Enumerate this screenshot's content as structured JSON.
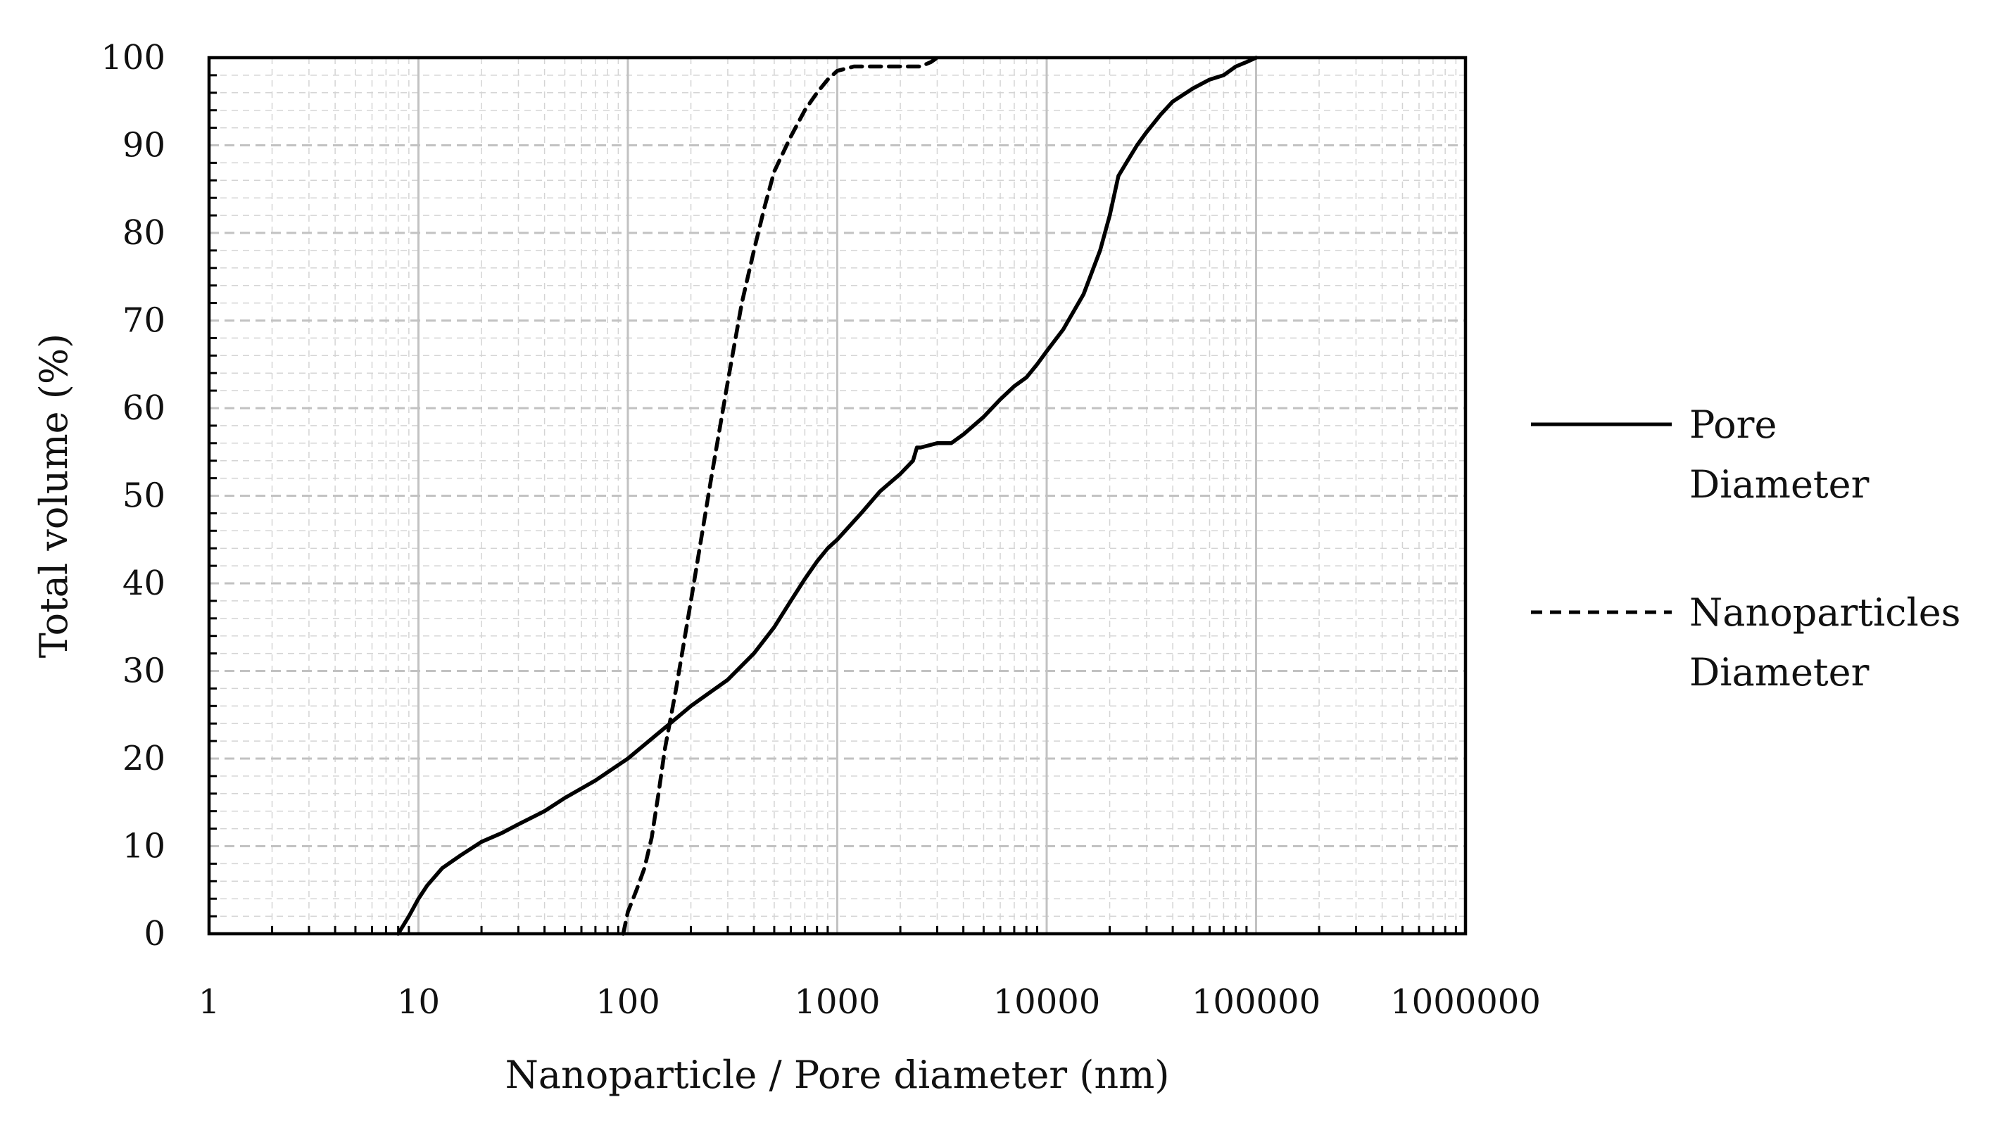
{
  "chart_data": {
    "type": "line",
    "title": "",
    "xlabel": "Nanoparticle / Pore diameter (nm)",
    "ylabel": "Total volume (%)",
    "xscale": "log",
    "xlim": [
      1,
      1000000
    ],
    "ylim": [
      0,
      100
    ],
    "x_ticks": [
      1,
      10,
      100,
      1000,
      10000,
      100000,
      1000000
    ],
    "x_tick_labels": [
      "1",
      "10",
      "100",
      "1000",
      "10000",
      "100000",
      "1000000"
    ],
    "y_ticks": [
      0,
      10,
      20,
      30,
      40,
      50,
      60,
      70,
      80,
      90,
      100
    ],
    "y_tick_labels": [
      "0",
      "10",
      "20",
      "30",
      "40",
      "50",
      "60",
      "70",
      "80",
      "90",
      "100"
    ],
    "grid": "major and minor, both axes",
    "legend_position": "right",
    "series": [
      {
        "name": "Pore Diameter",
        "legend_lines": [
          "Pore",
          "Diameter"
        ],
        "style": "solid",
        "color": "#000000",
        "x": [
          8,
          9,
          10,
          11,
          13,
          16,
          20,
          25,
          30,
          40,
          50,
          70,
          100,
          150,
          200,
          300,
          400,
          500,
          600,
          700,
          800,
          900,
          1000,
          1300,
          1600,
          2000,
          2300,
          2400,
          2500,
          3000,
          3500,
          4000,
          5000,
          6000,
          7000,
          8000,
          9000,
          10000,
          12000,
          15000,
          18000,
          20000,
          22000,
          24000,
          27000,
          30000,
          35000,
          40000,
          50000,
          60000,
          70000,
          80000,
          90000,
          100000
        ],
        "y": [
          0,
          2,
          4,
          5.5,
          7.5,
          9,
          10.5,
          11.5,
          12.5,
          14,
          15.5,
          17.5,
          20,
          23.5,
          26,
          29,
          32,
          35,
          38,
          40.5,
          42.5,
          44,
          45,
          48,
          50.5,
          52.5,
          54,
          55.5,
          55.5,
          56,
          56,
          57,
          59,
          61,
          62.5,
          63.5,
          65,
          66.5,
          69,
          73,
          78,
          82,
          86.5,
          88,
          90,
          91.5,
          93.5,
          95,
          96.5,
          97.5,
          98,
          99,
          99.5,
          100
        ]
      },
      {
        "name": "Nanoparticles Diameter",
        "legend_lines": [
          "Nanoparticles",
          "Diameter"
        ],
        "style": "dashed",
        "color": "#000000",
        "x": [
          95,
          100,
          110,
          120,
          130,
          140,
          150,
          170,
          200,
          250,
          300,
          350,
          400,
          450,
          500,
          600,
          700,
          800,
          900,
          1000,
          1200,
          1500,
          2000,
          2500,
          2800,
          3000
        ],
        "y": [
          0,
          2.5,
          5,
          7.5,
          11,
          16,
          21,
          28,
          38,
          52,
          63,
          72,
          78,
          83,
          87,
          91,
          94,
          96,
          97.5,
          98.5,
          99,
          99,
          99,
          99,
          99.5,
          100
        ]
      }
    ]
  }
}
